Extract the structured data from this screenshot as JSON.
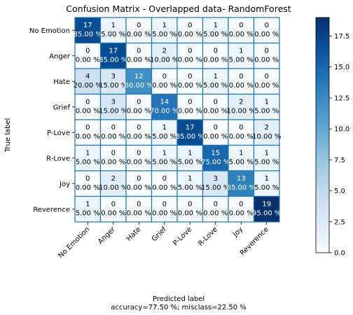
{
  "chart_data": {
    "type": "heatmap",
    "title": "Confusion Matrix - Overlapped data- RandomForest",
    "xlabel": "Predicted label",
    "ylabel": "True label",
    "footer": "accuracy=77.50 %; misclass=22.50 %",
    "categories": [
      "No Emotion",
      "Anger",
      "Hate",
      "Grief",
      "P-Love",
      "R-Love",
      "Joy",
      "Reverence"
    ],
    "counts": [
      [
        17,
        1,
        0,
        1,
        0,
        1,
        0,
        0
      ],
      [
        0,
        17,
        0,
        2,
        0,
        0,
        1,
        0
      ],
      [
        4,
        3,
        12,
        0,
        0,
        1,
        0,
        0
      ],
      [
        0,
        3,
        0,
        14,
        0,
        0,
        2,
        1
      ],
      [
        0,
        0,
        0,
        1,
        17,
        0,
        0,
        2
      ],
      [
        1,
        0,
        0,
        1,
        1,
        15,
        1,
        1
      ],
      [
        0,
        2,
        0,
        0,
        1,
        3,
        13,
        1
      ],
      [
        1,
        0,
        0,
        0,
        0,
        0,
        0,
        19
      ]
    ],
    "percents": [
      [
        "85.00 %",
        "5.00 %",
        "0.00 %",
        "5.00 %",
        "0.00 %",
        "5.00 %",
        "0.00 %",
        "0.00 %"
      ],
      [
        "0.00 %",
        "85.00 %",
        "0.00 %",
        "10.00 %",
        "0.00 %",
        "0.00 %",
        "5.00 %",
        "0.00 %"
      ],
      [
        "20.00 %",
        "15.00 %",
        "60.00 %",
        "0.00 %",
        "0.00 %",
        "5.00 %",
        "0.00 %",
        "0.00 %"
      ],
      [
        "0.00 %",
        "15.00 %",
        "0.00 %",
        "70.00 %",
        "0.00 %",
        "0.00 %",
        "10.00 %",
        "5.00 %"
      ],
      [
        "0.00 %",
        "0.00 %",
        "0.00 %",
        "5.00 %",
        "85.00 %",
        "0.00 %",
        "0.00 %",
        "10.00 %"
      ],
      [
        "5.00 %",
        "0.00 %",
        "0.00 %",
        "5.00 %",
        "5.00 %",
        "75.00 %",
        "5.00 %",
        "5.00 %"
      ],
      [
        "0.00 %",
        "10.00 %",
        "0.00 %",
        "0.00 %",
        "5.00 %",
        "15.00 %",
        "65.00 %",
        "5.00 %"
      ],
      [
        "5.00 %",
        "0.00 %",
        "0.00 %",
        "0.00 %",
        "0.00 %",
        "0.00 %",
        "0.00 %",
        "95.00 %"
      ]
    ],
    "colorbar": {
      "range": [
        0,
        19
      ],
      "ticks": [
        0,
        2.5,
        5,
        7.5,
        10,
        12.5,
        15,
        17.5
      ],
      "tick_labels": [
        "0.0",
        "2.5",
        "5.0",
        "7.5",
        "10.0",
        "12.5",
        "15.0",
        "17.5"
      ]
    },
    "colormap": "Blues",
    "grid": true,
    "grid_color": "#1f77b4"
  }
}
